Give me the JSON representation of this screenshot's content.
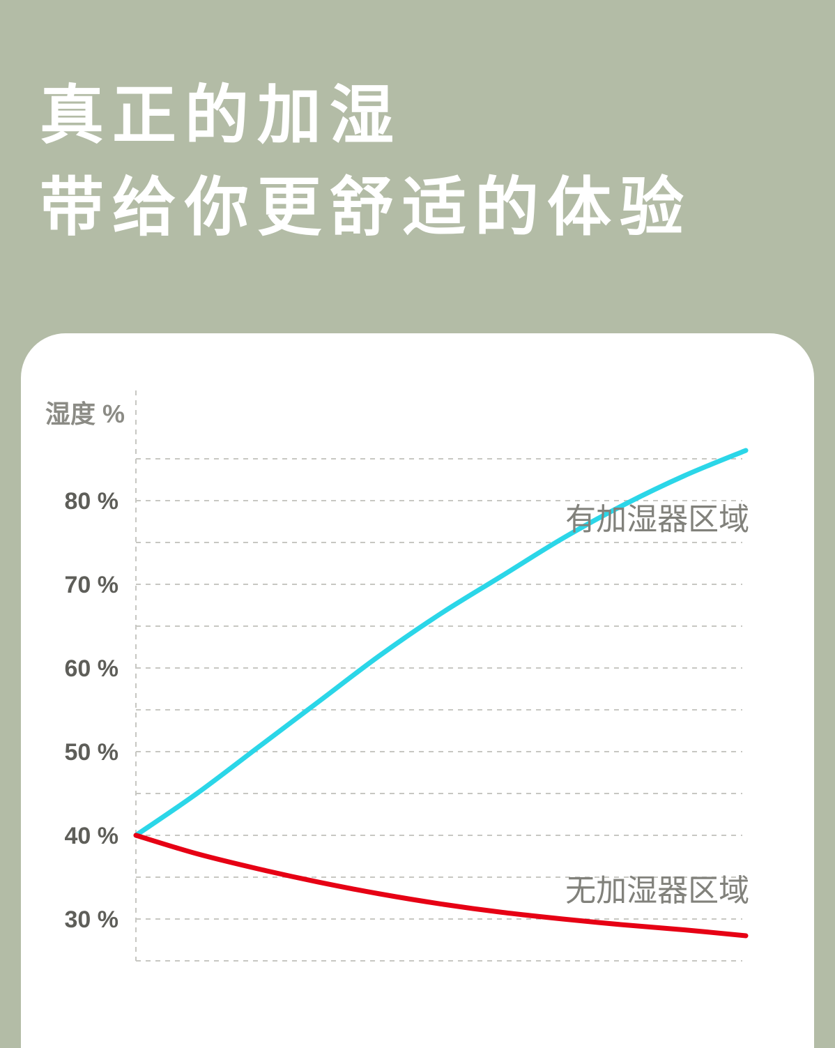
{
  "page": {
    "background": "#b3bca6",
    "title_line1": "真正的加湿",
    "title_line2": "带给你更舒适的体验"
  },
  "chart_data": {
    "type": "line",
    "title": "",
    "ylabel": "湿度 %",
    "ylabel_color": "#8b8b85",
    "tick_color": "#5e5e59",
    "grid_color": "#c7c7c2",
    "ylim": [
      25,
      87
    ],
    "grid_on": true,
    "gridlines": [
      85,
      80,
      75,
      70,
      65,
      60,
      55,
      50,
      45,
      40,
      35,
      30,
      25
    ],
    "yticks": [
      {
        "v": 80,
        "label": "80 %"
      },
      {
        "v": 70,
        "label": "70 %"
      },
      {
        "v": 60,
        "label": "60 %"
      },
      {
        "v": 50,
        "label": "50 %"
      },
      {
        "v": 40,
        "label": "40 %"
      },
      {
        "v": 30,
        "label": "30 %"
      }
    ],
    "series": [
      {
        "name": "有加湿器区域",
        "color": "#2bd6e8",
        "x": [
          0,
          0.1,
          0.2,
          0.3,
          0.4,
          0.5,
          0.6,
          0.7,
          0.8,
          0.9,
          1
        ],
        "values": [
          40,
          45,
          50.5,
          56,
          61.5,
          66.5,
          71,
          75.5,
          79.5,
          83,
          86
        ]
      },
      {
        "name": "无加湿器区域",
        "color": "#e60014",
        "x": [
          0,
          0.1,
          0.2,
          0.3,
          0.4,
          0.5,
          0.6,
          0.7,
          0.8,
          0.9,
          1
        ],
        "values": [
          40,
          37.8,
          36,
          34.4,
          33,
          31.8,
          30.8,
          30,
          29.3,
          28.7,
          28
        ]
      }
    ],
    "annotations": [
      {
        "text": "有加湿器区域",
        "x": 0.855,
        "value": 77.8,
        "color": "#81817b"
      },
      {
        "text": "无加湿器区域",
        "x": 0.855,
        "value": 33.4,
        "color": "#81817b"
      }
    ],
    "legend_position": "none"
  }
}
